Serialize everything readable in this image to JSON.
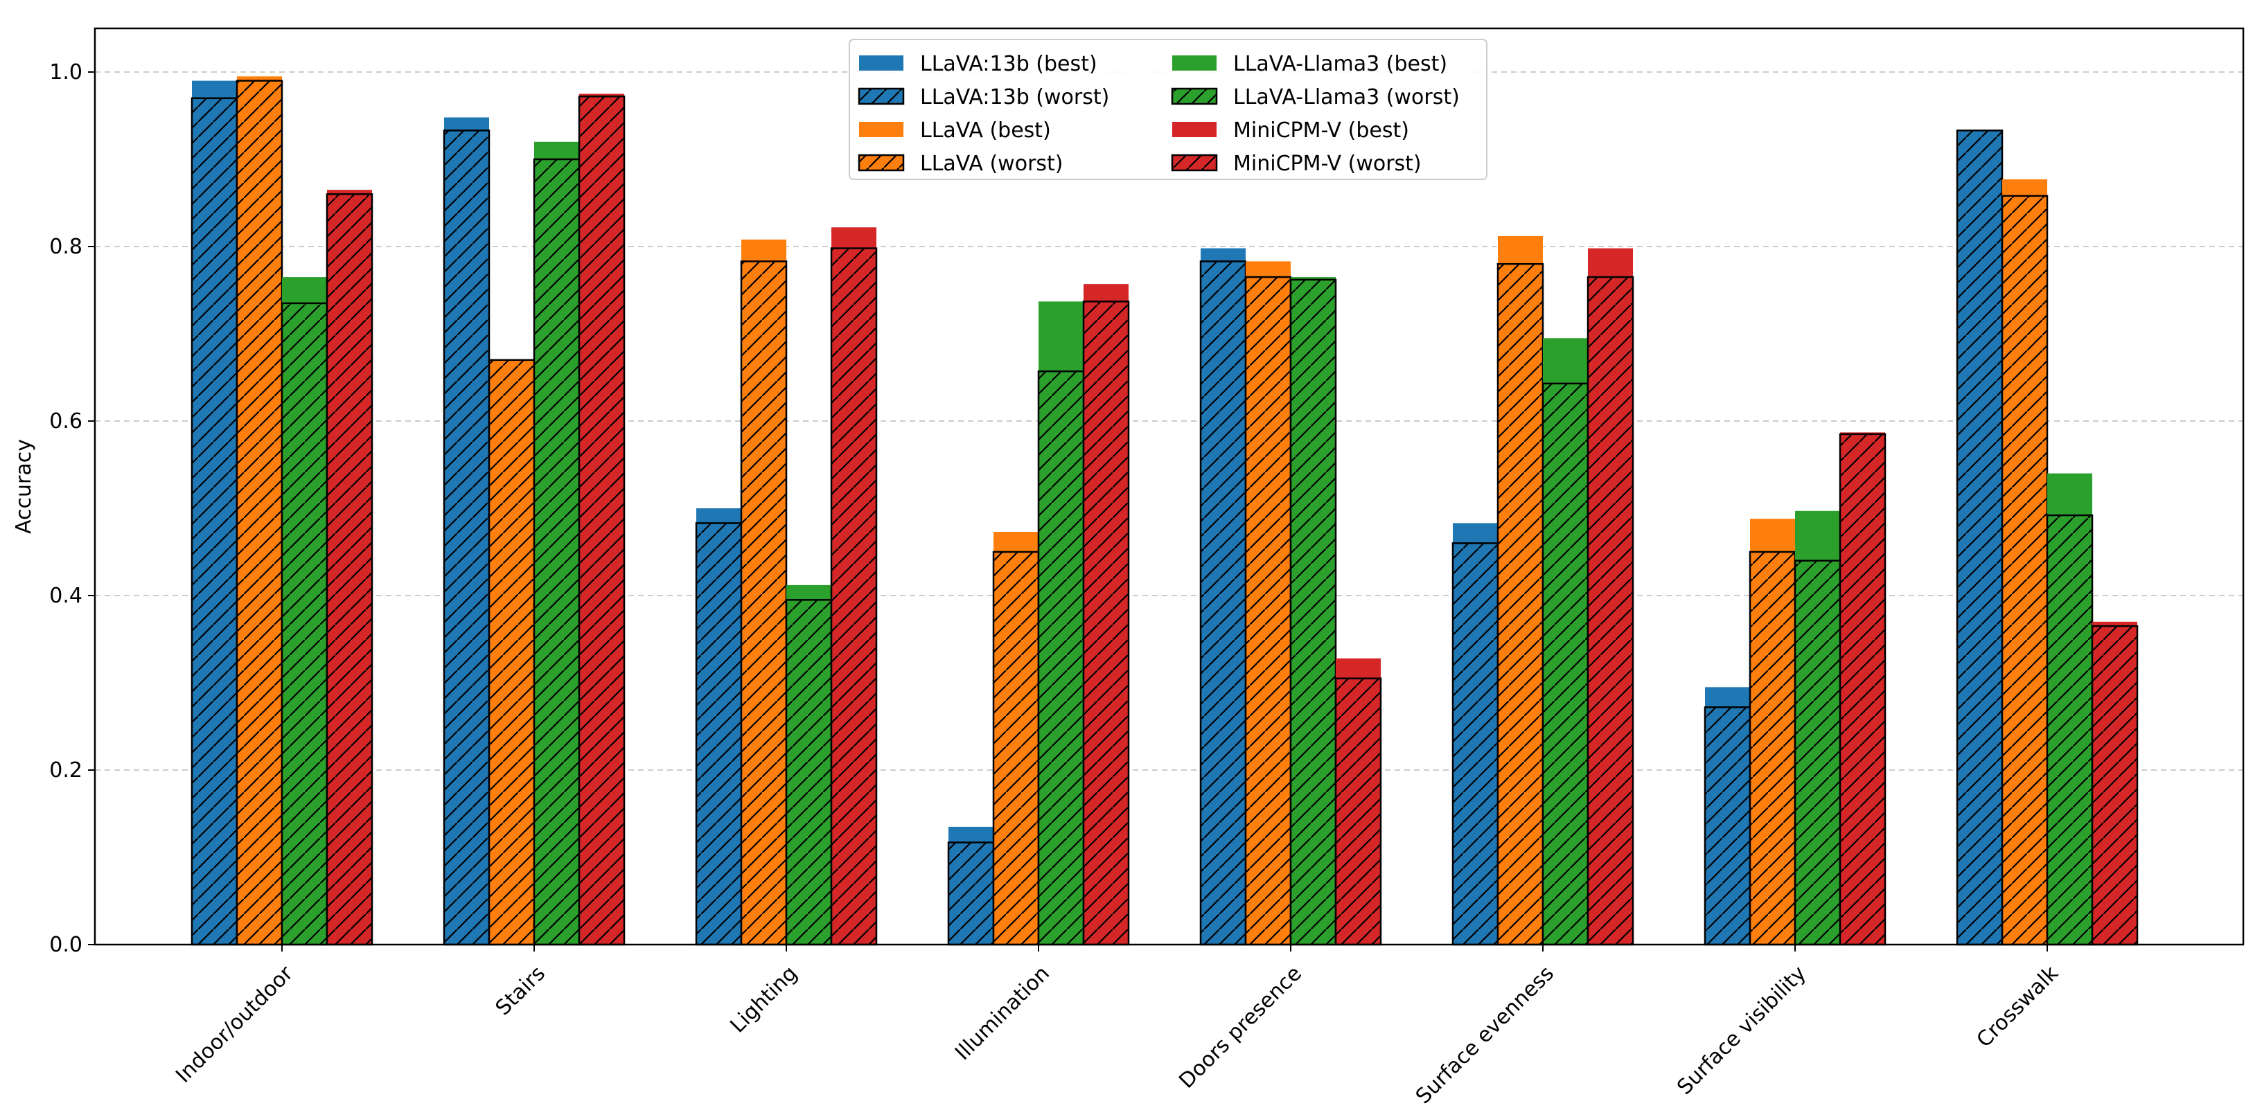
{
  "chart_data": {
    "type": "bar",
    "title": "",
    "xlabel": "",
    "ylabel": "Accuracy",
    "ylim": [
      0,
      1.05
    ],
    "yticks": [
      "0.0",
      "0.2",
      "0.4",
      "0.6",
      "0.8",
      "1.0"
    ],
    "grid": "horizontal dashed",
    "legend_position": "top-center",
    "categories": [
      "Indoor/outdoor",
      "Stairs",
      "Lighting",
      "Illumination",
      "Doors presence",
      "Surface evenness",
      "Surface visibility",
      "Crosswalk"
    ],
    "models": [
      {
        "name": "LLaVA:13b",
        "color": "#1f77b4",
        "best_label": "LLaVA:13b (best)",
        "worst_label": "LLaVA:13b (worst)",
        "best": [
          0.99,
          0.948,
          0.5,
          0.135,
          0.798,
          0.483,
          0.295,
          0.933
        ],
        "worst": [
          0.97,
          0.933,
          0.483,
          0.117,
          0.783,
          0.46,
          0.272,
          0.933
        ]
      },
      {
        "name": "LLaVA",
        "color": "#ff7f0e",
        "best_label": "LLaVA (best)",
        "worst_label": "LLaVA (worst)",
        "best": [
          0.995,
          0.67,
          0.808,
          0.473,
          0.783,
          0.812,
          0.488,
          0.877
        ],
        "worst": [
          0.99,
          0.67,
          0.783,
          0.45,
          0.765,
          0.78,
          0.45,
          0.858
        ]
      },
      {
        "name": "LLaVA-Llama3",
        "color": "#2ca02c",
        "best_label": "LLaVA-Llama3 (best)",
        "worst_label": "LLaVA-Llama3 (worst)",
        "best": [
          0.765,
          0.92,
          0.412,
          0.737,
          0.765,
          0.695,
          0.497,
          0.54
        ],
        "worst": [
          0.735,
          0.9,
          0.395,
          0.657,
          0.762,
          0.643,
          0.44,
          0.492
        ]
      },
      {
        "name": "MiniCPM-V",
        "color": "#d62728",
        "best_label": "MiniCPM-V (best)",
        "worst_label": "MiniCPM-V (worst)",
        "best": [
          0.865,
          0.975,
          0.822,
          0.757,
          0.328,
          0.798,
          0.587,
          0.37
        ],
        "worst": [
          0.86,
          0.972,
          0.798,
          0.737,
          0.305,
          0.765,
          0.585,
          0.365
        ]
      }
    ]
  }
}
